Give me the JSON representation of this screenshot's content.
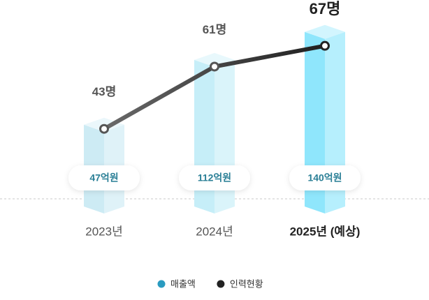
{
  "chart_data": {
    "type": "combo",
    "categories": [
      "2023년",
      "2024년",
      "2025년 (예상)"
    ],
    "series": [
      {
        "name": "매출액",
        "type": "bar",
        "color": "#2a9bc0",
        "values": [
          47,
          112,
          140
        ],
        "value_labels": [
          "47억원",
          "112억원",
          "140억원"
        ],
        "bar_colors": [
          "#cdebf4",
          "#c6eef8",
          "#8fe6fc"
        ]
      },
      {
        "name": "인력현황",
        "type": "line",
        "color": "#222222",
        "values": [
          43,
          61,
          67
        ],
        "value_labels": [
          "43명",
          "61명",
          "67명"
        ]
      }
    ]
  }
}
